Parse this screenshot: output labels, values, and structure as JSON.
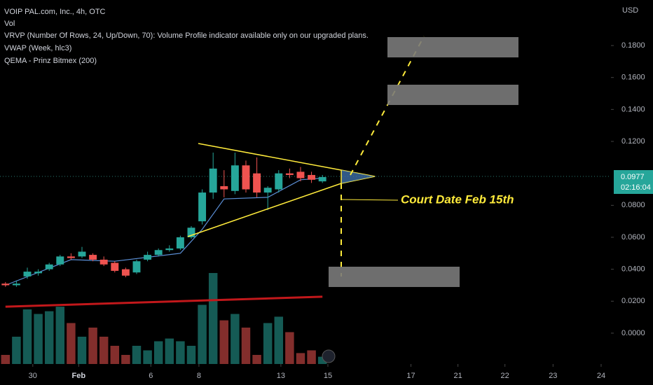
{
  "chart_data": {
    "type": "candlestick",
    "title": "VOIP PAL.com, Inc., 4h, OTC",
    "legend_lines": [
      "Vol",
      "VRVP (Number Of Rows, 24, Up/Down, 70): Volume Profile indicator available only on our upgraded plans.",
      "VWAP (Week, hlc3)",
      "QEMA - Prinz Bitmex (200)"
    ],
    "currency": "USD",
    "annotation": "Court Date Feb 15th",
    "last_price": {
      "value": 0.0977,
      "label": "0.0977"
    },
    "countdown": "02:16:04",
    "up_color": "#26a69a",
    "down_color": "#ef5350",
    "x": [
      0,
      1,
      2,
      3,
      4,
      5,
      6,
      7,
      8,
      9,
      10,
      11,
      12,
      13,
      14,
      15,
      16,
      17,
      18,
      19,
      20,
      21,
      22,
      23,
      24,
      25,
      26,
      27,
      28,
      29
    ],
    "open": [
      0.031,
      0.03,
      0.0355,
      0.0375,
      0.04,
      0.043,
      0.048,
      0.048,
      0.049,
      0.046,
      0.044,
      0.04,
      0.038,
      0.046,
      0.049,
      0.052,
      0.053,
      0.06,
      0.07,
      0.088,
      0.092,
      0.089,
      0.105,
      0.1,
      0.088,
      0.09,
      0.1,
      0.101,
      0.099,
      0.095
    ],
    "high": [
      0.032,
      0.033,
      0.041,
      0.04,
      0.044,
      0.049,
      0.05,
      0.054,
      0.05,
      0.048,
      0.045,
      0.041,
      0.046,
      0.051,
      0.053,
      0.055,
      0.061,
      0.067,
      0.09,
      0.113,
      0.102,
      0.113,
      0.108,
      0.11,
      0.092,
      0.102,
      0.103,
      0.104,
      0.101,
      0.099
    ],
    "low": [
      0.029,
      0.029,
      0.034,
      0.036,
      0.039,
      0.042,
      0.046,
      0.047,
      0.045,
      0.042,
      0.038,
      0.035,
      0.037,
      0.045,
      0.048,
      0.051,
      0.052,
      0.059,
      0.068,
      0.084,
      0.085,
      0.087,
      0.088,
      0.085,
      0.077,
      0.088,
      0.097,
      0.095,
      0.094,
      0.094
    ],
    "close": [
      0.03,
      0.031,
      0.0385,
      0.0385,
      0.043,
      0.048,
      0.047,
      0.051,
      0.046,
      0.043,
      0.039,
      0.036,
      0.045,
      0.049,
      0.052,
      0.053,
      0.06,
      0.066,
      0.088,
      0.103,
      0.09,
      0.105,
      0.09,
      0.088,
      0.091,
      0.1,
      0.099,
      0.097,
      0.096,
      0.0977
    ],
    "volume": [
      10,
      30,
      60,
      55,
      58,
      63,
      45,
      30,
      40,
      30,
      20,
      10,
      20,
      15,
      25,
      28,
      25,
      20,
      65,
      100,
      48,
      55,
      40,
      10,
      45,
      52,
      35,
      12,
      15,
      8
    ],
    "vwap": {
      "name": "VWAP (Week, hlc3)",
      "color": "#5b8fd6",
      "x": [
        0,
        6,
        10,
        16,
        18,
        20,
        24,
        27,
        29
      ],
      "values": [
        0.03,
        0.046,
        0.045,
        0.05,
        0.065,
        0.084,
        0.085,
        0.096,
        0.097
      ]
    },
    "qema": {
      "name": "QEMA - Prinz Bitmex (200)",
      "color": "#c2181b",
      "x": [
        0,
        29
      ],
      "values": [
        0.0166,
        0.0228
      ]
    },
    "xlim": [
      -0.5,
      55.4
    ],
    "ylim": [
      -0.0193,
      0.2085
    ],
    "y2lim": [
      0,
      100
    ],
    "yticks": [
      {
        "value": 0.18,
        "label": "0.1800"
      },
      {
        "value": 0.16,
        "label": "0.1600"
      },
      {
        "value": 0.14,
        "label": "0.1400"
      },
      {
        "value": 0.12,
        "label": "0.1200"
      },
      {
        "value": 0.08,
        "label": "0.0800"
      },
      {
        "value": 0.06,
        "label": "0.0600"
      },
      {
        "value": 0.04,
        "label": "0.0400"
      },
      {
        "value": 0.02,
        "label": "0.0200"
      },
      {
        "value": 0,
        "label": "0.0000"
      }
    ],
    "xticks": [
      {
        "value": 2.5,
        "label": "30"
      },
      {
        "value": 6.7,
        "label": "Feb"
      },
      {
        "value": 13.3,
        "label": "6"
      },
      {
        "value": 17.7,
        "label": "8"
      },
      {
        "value": 25.2,
        "label": "13"
      },
      {
        "value": 29.5,
        "label": "15"
      },
      {
        "value": 37.1,
        "label": "17"
      },
      {
        "value": 41.4,
        "label": "21"
      },
      {
        "value": 45.7,
        "label": "22"
      },
      {
        "value": 50.1,
        "label": "23"
      },
      {
        "value": 54.5,
        "label": "24"
      }
    ]
  }
}
